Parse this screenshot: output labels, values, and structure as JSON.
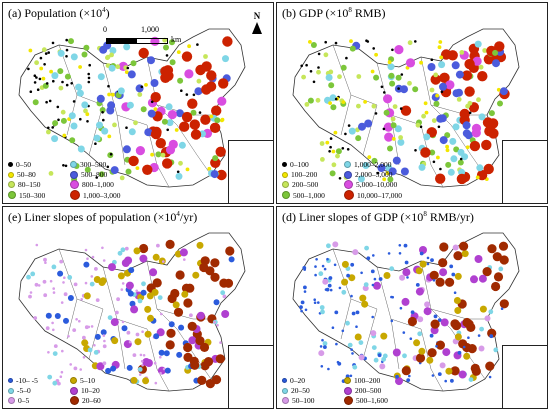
{
  "panels": [
    {
      "title_prefix": "(a) Population (×10",
      "title_sup": "4",
      "title_suffix": ")",
      "legend": [
        {
          "label": "0–50",
          "color": "#000000"
        },
        {
          "label": "300–500",
          "color": "#7fd6e6"
        },
        {
          "label": "50–80",
          "color": "#f2e600"
        },
        {
          "label": "500–800",
          "color": "#4b5bdc"
        },
        {
          "label": "80–150",
          "color": "#c6e65a"
        },
        {
          "label": "800–1,000",
          "color": "#d94de0"
        },
        {
          "label": "150–300",
          "color": "#7cc63a"
        },
        {
          "label": "1,000–3,000",
          "color": "#cc2200"
        }
      ]
    },
    {
      "title_prefix": "(b) GDP (×10",
      "title_sup": "8",
      "title_suffix": " RMB)",
      "legend": [
        {
          "label": "0–100",
          "color": "#000000"
        },
        {
          "label": "1,000–2,000",
          "color": "#7fd6e6"
        },
        {
          "label": "100–200",
          "color": "#f2e600"
        },
        {
          "label": "2,000–5,000",
          "color": "#4b5bdc"
        },
        {
          "label": "200–500",
          "color": "#c6e65a"
        },
        {
          "label": "5,000–10,000",
          "color": "#d94de0"
        },
        {
          "label": "500–1,000",
          "color": "#7cc63a"
        },
        {
          "label": "10,000–17,000",
          "color": "#cc2200"
        }
      ]
    },
    {
      "title_prefix": "(e) Liner slopes of population (×10",
      "title_sup": "4",
      "title_suffix": "/yr)",
      "legend": [
        {
          "label": "-10– -5",
          "color": "#2b5bdc"
        },
        {
          "label": "5–10",
          "color": "#c8a800"
        },
        {
          "label": "-5–0",
          "color": "#7fd6e6"
        },
        {
          "label": "10–20",
          "color": "#b040d0"
        },
        {
          "label": "0–5",
          "color": "#d79be8"
        },
        {
          "label": "20–60",
          "color": "#a02a00"
        }
      ]
    },
    {
      "title_prefix": "(d) Liner slopes of GDP (×10",
      "title_sup": "8",
      "title_suffix": " RMB/yr)",
      "legend": [
        {
          "label": "0–20",
          "color": "#2b5bdc"
        },
        {
          "label": "100–200",
          "color": "#c8a800"
        },
        {
          "label": "20–50",
          "color": "#7fd6e6"
        },
        {
          "label": "200–500",
          "color": "#b040d0"
        },
        {
          "label": "50–100",
          "color": "#d79be8"
        },
        {
          "label": "500–1,600",
          "color": "#a02a00"
        }
      ]
    }
  ],
  "scale_bar": {
    "start": "0",
    "end": "1,000",
    "unit": "km"
  },
  "north_arrow": {
    "label": "N"
  },
  "colors": {
    "outline": "#333333",
    "background": "#ffffff"
  }
}
